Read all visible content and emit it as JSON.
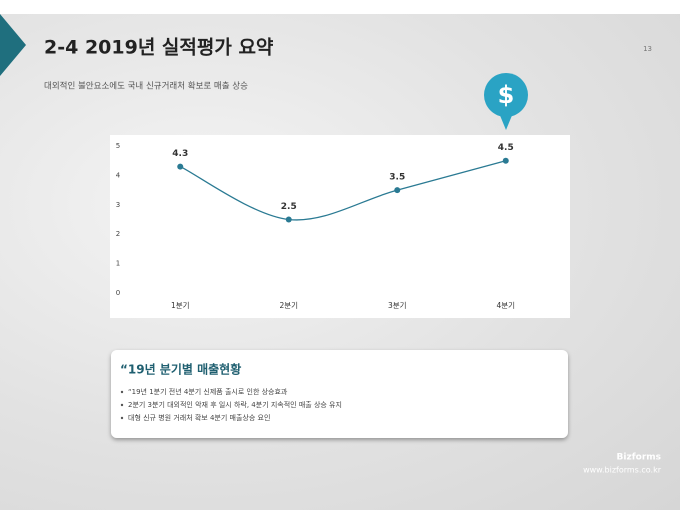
{
  "header": {
    "title": "2-4 2019년 실적평가 요약",
    "page": "13",
    "subtitle": "대외적인 불안요소에도 국내 신규거래처 확보로 매출 상승"
  },
  "chart_data": {
    "type": "line",
    "categories": [
      "1분기",
      "2분기",
      "3분기",
      "4분기"
    ],
    "values": [
      4.3,
      2.5,
      3.5,
      4.5
    ],
    "color": "#2a7a93",
    "ylim": [
      0,
      5
    ],
    "yticks": [
      0,
      1,
      2,
      3,
      4,
      5
    ],
    "icon": "$"
  },
  "summary": {
    "title": "“19년 분기별 매출현황",
    "items": [
      "“19년 1분기 전년 4분기 신제품 출시로 인한 상승효과",
      "2분기 3분기 대외적인 악재 후 일시 하락, 4분기 지속적인 매출 상승 유지",
      "대형 신규 병원 거래처 확보 4분기 매출상승 요인"
    ]
  },
  "footer": {
    "brand": "Bizforms",
    "url": "www.bizforms.co.kr"
  }
}
